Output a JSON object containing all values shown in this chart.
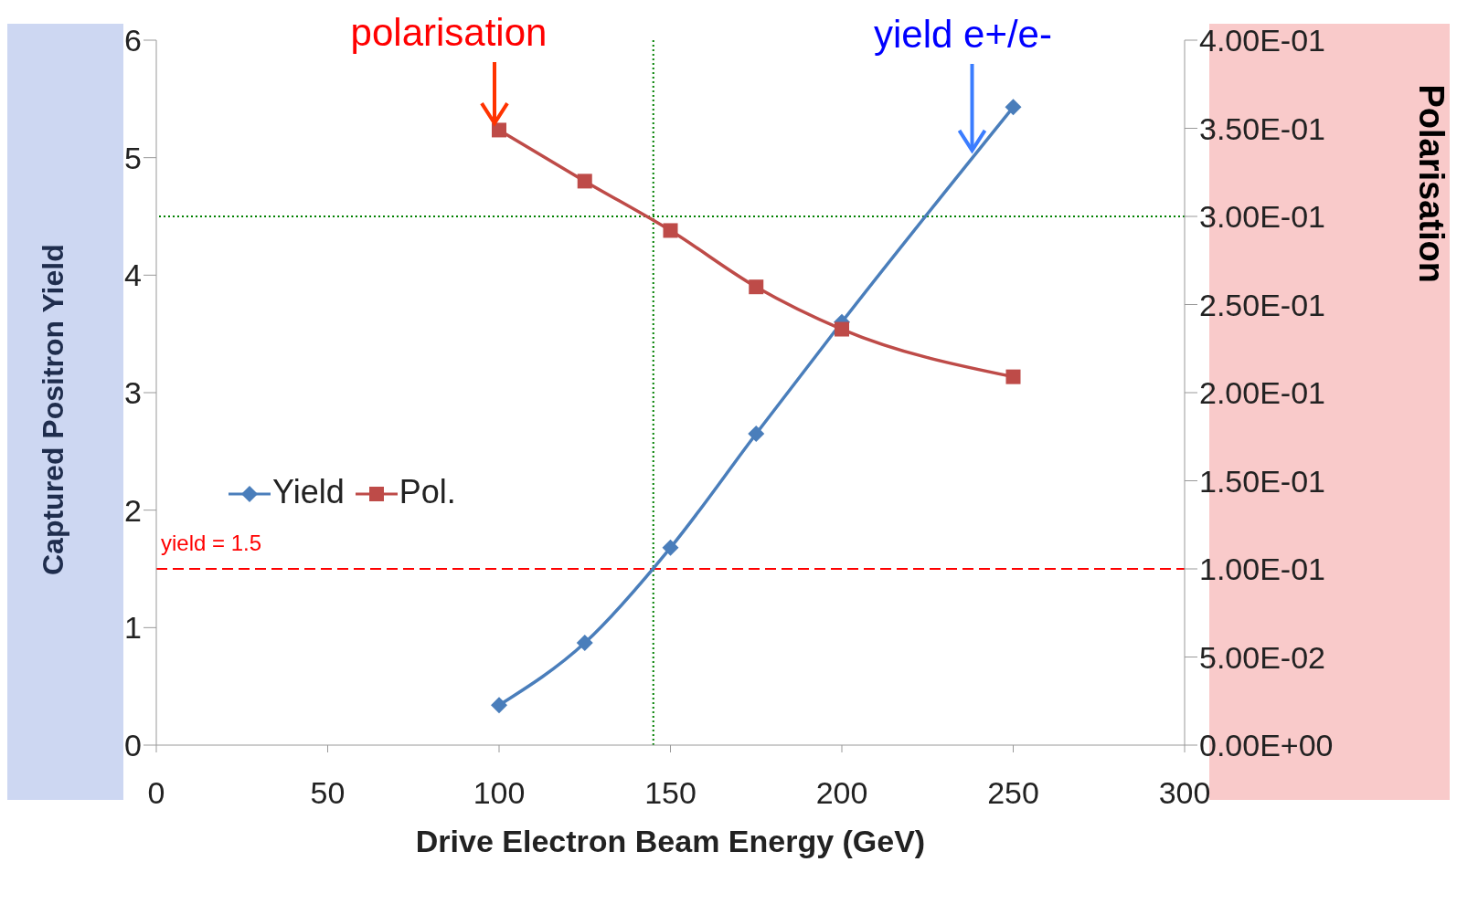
{
  "chart_data": {
    "type": "line",
    "xlabel": "Drive Electron Beam Energy (GeV)",
    "ylabel": "Captured Positron Yield",
    "y2label": "Polarisation",
    "x": [
      100,
      125,
      150,
      175,
      200,
      250
    ],
    "series": [
      {
        "name": "Yield",
        "color": "#4a7ebb",
        "marker": "diamond",
        "values": [
          0.34,
          0.87,
          1.68,
          2.65,
          3.6,
          5.43
        ]
      },
      {
        "name": "Pol.",
        "color": "#be4b48",
        "marker": "square",
        "axis": "y2",
        "values": [
          0.349,
          0.32,
          0.292,
          0.26,
          0.236,
          0.209
        ]
      }
    ],
    "xlim": [
      0,
      300
    ],
    "xticks": [
      0,
      50,
      100,
      150,
      200,
      250,
      300
    ],
    "ylim": [
      0,
      6
    ],
    "yticks": [
      0,
      1,
      2,
      3,
      4,
      5,
      6
    ],
    "y2lim": [
      0,
      0.4
    ],
    "y2ticks": [
      {
        "value": 0,
        "label": "0.00E+00"
      },
      {
        "value": 0.05,
        "label": "5.00E-02"
      },
      {
        "value": 0.1,
        "label": "1.00E-01"
      },
      {
        "value": 0.15,
        "label": "1.50E-01"
      },
      {
        "value": 0.2,
        "label": "2.00E-01"
      },
      {
        "value": 0.25,
        "label": "2.50E-01"
      },
      {
        "value": 0.3,
        "label": "3.00E-01"
      },
      {
        "value": 0.35,
        "label": "3.50E-01"
      },
      {
        "value": 0.4,
        "label": "4.00E-01"
      }
    ],
    "ref_lines": [
      {
        "axis": "y",
        "value": 1.5,
        "label": "yield = 1.5",
        "color": "#ff0000",
        "line_style": "dashed"
      },
      {
        "axis": "y2",
        "value": 0.3,
        "label": null,
        "color": "#008000",
        "line_style": "dotted"
      },
      {
        "axis": "x",
        "value": 145,
        "label": null,
        "color": "#008000",
        "line_style": "dotted"
      }
    ],
    "annotations": [
      {
        "text": "polarisation",
        "x": 100,
        "y": 5.24
      },
      {
        "text": "yield e+/e-",
        "x": 238,
        "y": 5.05
      }
    ],
    "legend": "left",
    "line_style": "solid"
  }
}
